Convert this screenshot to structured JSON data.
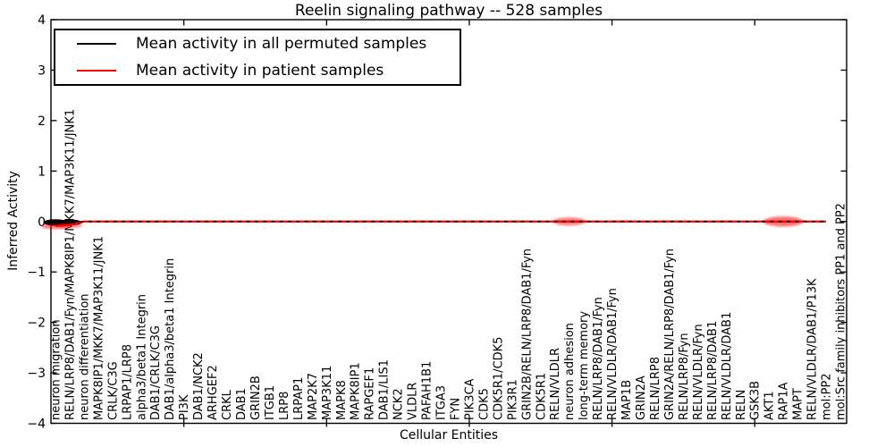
{
  "chart_data": {
    "type": "line",
    "title": "Reelin signaling pathway -- 528 samples",
    "xlabel": "Cellular Entities",
    "ylabel": "Inferred Activity",
    "ylim": [
      -4,
      4
    ],
    "ytick_labels": [
      "4",
      "3",
      "2",
      "1",
      "0",
      "−1",
      "−2",
      "−3",
      "−4"
    ],
    "ytick_values": [
      4,
      3,
      2,
      1,
      0,
      -1,
      -2,
      -3,
      -4
    ],
    "x_major_tick_indices": [
      9,
      19,
      29,
      39,
      49
    ],
    "grid": false,
    "legend_position": "upper left",
    "background_color": "#ffffff",
    "categories": [
      "neuron migration",
      "RELN/LRP8/DAB1/Fyn/MAPK8IP1/MKK7/MAP3K11/JNK1",
      "neuron differentiation",
      "MAPK8IP1/MKK7/MAP3K11/JNK1",
      "CRLK/C3G",
      "LRPAP1/LRP8",
      "alpha3/beta1 Integrin",
      "DAB1/CRLK/C3G",
      "DAB1/alpha3/beta1 Integrin",
      "PI3K",
      "DAB1/NCK2",
      "ARHGEF2",
      "CRKL",
      "DAB1",
      "GRIN2B",
      "ITGB1",
      "LRP8",
      "LRPAP1",
      "MAP2K7",
      "MAP3K11",
      "MAPK8",
      "MAPK8IP1",
      "RAPGEF1",
      "DAB1/LIS1",
      "NCK2",
      "VLDLR",
      "PAFAH1B1",
      "ITGA3",
      "FYN",
      "PIK3CA",
      "CDK5",
      "CDK5R1/CDK5",
      "PIK3R1",
      "GRIN2B/RELN/LRP8/DAB1/Fyn",
      "CDK5R1",
      "RELN/VLDLR",
      "neuron adhesion",
      "long-term memory",
      "RELN/LRP8/DAB1/Fyn",
      "RELN/VLDLR/DAB1/Fyn",
      "MAP1B",
      "GRIN2A",
      "RELN/LRP8",
      "GRIN2A/RELN/LRP8/DAB1/Fyn",
      "RELN/LRP8/Fyn",
      "RELN/VLDLR/Fyn",
      "RELN/LRP8/DAB1",
      "RELN/VLDLR/DAB1",
      "RELN",
      "GSK3B",
      "AKT1",
      "RAP1A",
      "MAPT",
      "RELN/VLDLR/DAB1/P13K",
      "mol:PP2",
      "mol:Src family inhibitors PP1 and PP2"
    ],
    "series": [
      {
        "name": "Mean activity in all permuted samples",
        "color": "#000000",
        "line_style": "dashed",
        "values": [
          -0.03,
          -0.03,
          0,
          0,
          0,
          0,
          0,
          0,
          0,
          0,
          0,
          0,
          0,
          0,
          0,
          0,
          0,
          0,
          0,
          0,
          0,
          0,
          0,
          0,
          0,
          0,
          0,
          0,
          0,
          0,
          0,
          0,
          0,
          0,
          0,
          0,
          0,
          0,
          0,
          0,
          0,
          0,
          0,
          0,
          0,
          0,
          0,
          0,
          0,
          0,
          0,
          0,
          0,
          0,
          0,
          0
        ]
      },
      {
        "name": "Mean activity in patient samples",
        "color": "#ff0000",
        "line_style": "solid",
        "values": [
          -0.09,
          -0.07,
          0,
          0,
          0,
          0,
          0,
          0,
          0,
          0,
          0,
          0,
          0,
          0,
          0,
          0,
          0,
          0,
          0,
          0,
          0,
          0,
          0,
          0,
          0,
          0,
          0,
          0,
          0,
          0,
          0,
          0,
          0,
          0,
          0,
          0,
          0,
          0,
          0,
          0,
          0,
          0,
          0,
          0,
          0,
          0,
          0,
          0,
          0,
          0,
          0,
          0,
          0,
          0,
          0,
          0
        ]
      }
    ],
    "spread_markers": [
      {
        "category": "neuron migration",
        "series": "Mean activity in all permuted samples",
        "y": -0.02,
        "x_halfwidth": 0.85,
        "y_spread": 0.065,
        "color": "#000000",
        "blur": false,
        "opacity": 1.0
      },
      {
        "category": "RELN/LRP8/DAB1/Fyn/MAPK8IP1/MKK7/MAP3K11/JNK1",
        "series": "Mean activity in all permuted samples",
        "y": -0.02,
        "x_halfwidth": 0.85,
        "y_spread": 0.06,
        "color": "#000000",
        "blur": false,
        "opacity": 1.0
      },
      {
        "category": "neuron migration",
        "series": "Mean activity in patient samples",
        "y": -0.1,
        "x_halfwidth": 1.0,
        "y_spread": 0.05,
        "color": "#ff0000",
        "blur": true,
        "opacity": 0.55
      },
      {
        "category": "RELN/LRP8/DAB1/Fyn/MAPK8IP1/MKK7/MAP3K11/JNK1",
        "series": "Mean activity in patient samples",
        "y": -0.08,
        "x_halfwidth": 0.9,
        "y_spread": 0.045,
        "color": "#ff0000",
        "blur": true,
        "opacity": 0.5
      },
      {
        "category": "neuron adhesion",
        "series": "Mean activity in patient samples",
        "y": 0,
        "x_halfwidth": 1.15,
        "y_spread": 0.08,
        "color": "#ff0000",
        "blur": true,
        "opacity": 0.5
      },
      {
        "category": "RAP1A",
        "series": "Mean activity in patient samples",
        "y": 0,
        "x_halfwidth": 1.4,
        "y_spread": 0.1,
        "color": "#ff0000",
        "blur": true,
        "opacity": 0.55
      }
    ]
  }
}
